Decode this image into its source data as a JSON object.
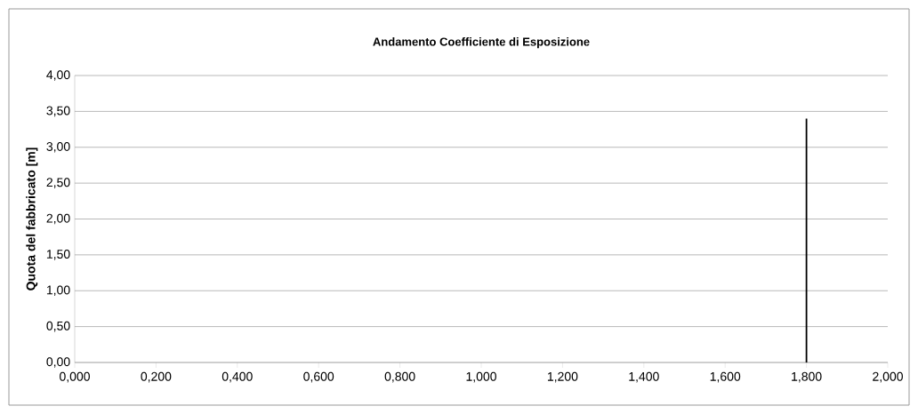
{
  "chart_data": {
    "type": "line",
    "title": "Andamento Coefficiente di Esposizione",
    "ylabel": "Quota del fabbricato [m]",
    "series": [
      {
        "x": [
          1.8,
          1.8
        ],
        "values": [
          0,
          3.4
        ],
        "color": "#000000"
      }
    ],
    "xlim": [
      0,
      2
    ],
    "ylim": [
      0,
      4
    ],
    "xticks": [
      {
        "value": 0,
        "label": "0,000"
      },
      {
        "value": 0.2,
        "label": "0,200"
      },
      {
        "value": 0.4,
        "label": "0,400"
      },
      {
        "value": 0.6,
        "label": "0,600"
      },
      {
        "value": 0.8,
        "label": "0,800"
      },
      {
        "value": 1.0,
        "label": "1,000"
      },
      {
        "value": 1.2,
        "label": "1,200"
      },
      {
        "value": 1.4,
        "label": "1,400"
      },
      {
        "value": 1.6,
        "label": "1,600"
      },
      {
        "value": 1.8,
        "label": "1,800"
      },
      {
        "value": 2.0,
        "label": "2,000"
      }
    ],
    "yticks": [
      {
        "value": 0,
        "label": "0,00"
      },
      {
        "value": 0.5,
        "label": "0,50"
      },
      {
        "value": 1.0,
        "label": "1,00"
      },
      {
        "value": 1.5,
        "label": "1,50"
      },
      {
        "value": 2.0,
        "label": "2,00"
      },
      {
        "value": 2.5,
        "label": "2,50"
      },
      {
        "value": 3.0,
        "label": "3,00"
      },
      {
        "value": 3.5,
        "label": "3,50"
      },
      {
        "value": 4.0,
        "label": "4,00"
      }
    ],
    "grid": "y",
    "marker": "none",
    "line_style": "solid"
  }
}
